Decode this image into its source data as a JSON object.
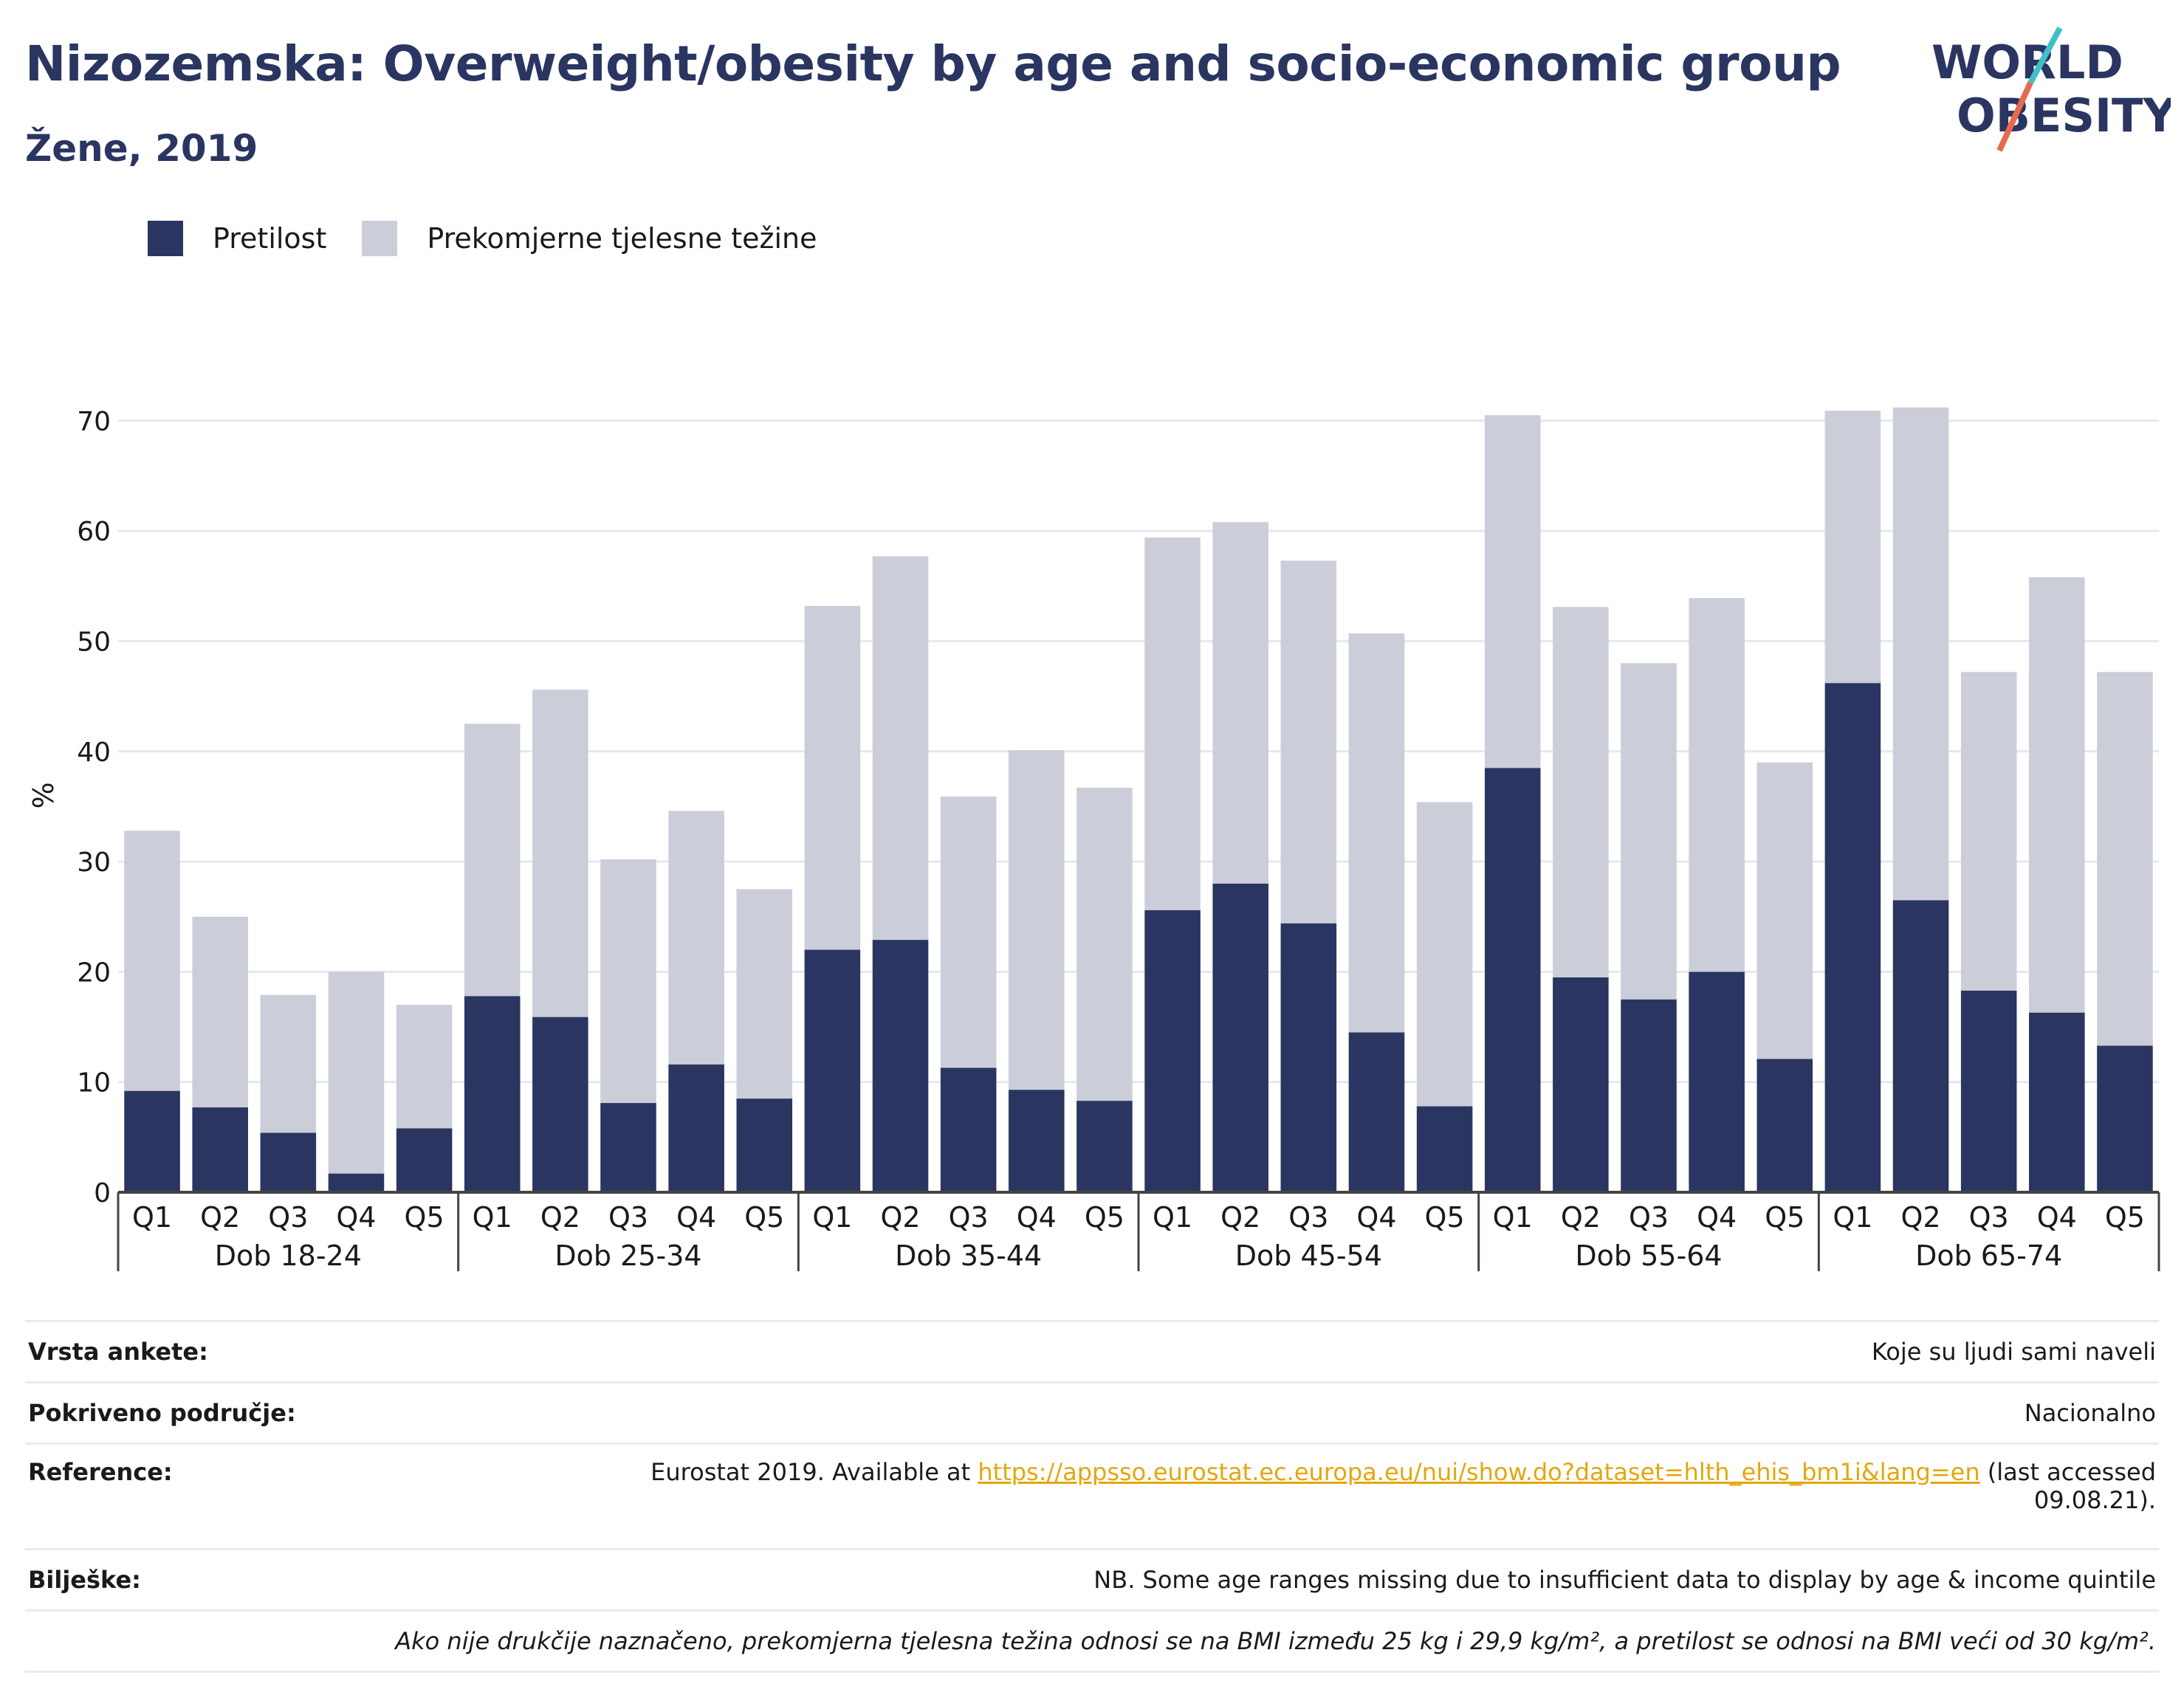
{
  "title": "Nizozemska: Overweight/obesity by age and socio-economic group",
  "subtitle": "Žene, 2019",
  "logo": {
    "line1": "WORLD",
    "line2": "OBESITY"
  },
  "legend": [
    {
      "label": "Pretilost",
      "color": "#2a3561"
    },
    {
      "label": "Prekomjerne tjelesne težine",
      "color": "#cbcdd9"
    }
  ],
  "chart_data": {
    "type": "bar",
    "stacked": true,
    "ylabel": "%",
    "ylim": [
      0,
      72
    ],
    "yticks": [
      0,
      10,
      20,
      30,
      40,
      50,
      60,
      70
    ],
    "grid": true,
    "legend_position": "top-left",
    "groups": [
      "Dob 18-24",
      "Dob 25-34",
      "Dob 35-44",
      "Dob 45-54",
      "Dob 55-64",
      "Dob 65-74"
    ],
    "categories": [
      "Q1",
      "Q2",
      "Q3",
      "Q4",
      "Q5"
    ],
    "series": [
      {
        "name": "Pretilost",
        "color": "#2a3561",
        "values": [
          [
            9.2,
            7.7,
            5.4,
            1.7,
            5.8
          ],
          [
            17.8,
            15.9,
            8.1,
            11.6,
            8.5
          ],
          [
            22.0,
            22.9,
            11.3,
            9.3,
            8.3
          ],
          [
            25.6,
            28.0,
            24.4,
            14.5,
            7.8
          ],
          [
            38.5,
            19.5,
            17.5,
            20.0,
            12.1
          ],
          [
            46.2,
            26.5,
            18.3,
            16.3,
            13.3
          ]
        ]
      },
      {
        "name": "Prekomjerne tjelesne težine",
        "color": "#cbcdd9",
        "values": [
          [
            23.6,
            17.3,
            12.5,
            18.3,
            11.2
          ],
          [
            24.7,
            29.7,
            22.1,
            23.0,
            19.0
          ],
          [
            31.2,
            34.8,
            24.6,
            30.8,
            28.4
          ],
          [
            33.8,
            32.8,
            32.9,
            36.2,
            27.6
          ],
          [
            32.0,
            33.6,
            30.5,
            33.9,
            26.9
          ],
          [
            24.7,
            44.7,
            28.9,
            39.5,
            33.9
          ]
        ]
      }
    ]
  },
  "info": {
    "survey_type": {
      "label": "Vrsta ankete:",
      "value": "Koje su ljudi sami naveli"
    },
    "coverage": {
      "label": "Pokriveno područje:",
      "value": "Nacionalno"
    },
    "reference": {
      "label": "Reference:",
      "prefix": "Eurostat 2019. Available at",
      "link": "https://appsso.eurostat.ec.europa.eu/nui/show.do?dataset=hlth_ehis_bm1i&lang=en",
      "suffix": "(last accessed",
      "date": "09.08.21)."
    },
    "notes": {
      "label": "Bilješke:",
      "value": "NB. Some age ranges missing due to insufficient data to display by age & income quintile"
    },
    "definition": "Ako nije drukčije naznačeno, prekomjerna tjelesna težina odnosi se na BMI između 25 kg i 29,9 kg/m², a pretilost se odnosi na BMI veći od 30 kg/m²."
  }
}
